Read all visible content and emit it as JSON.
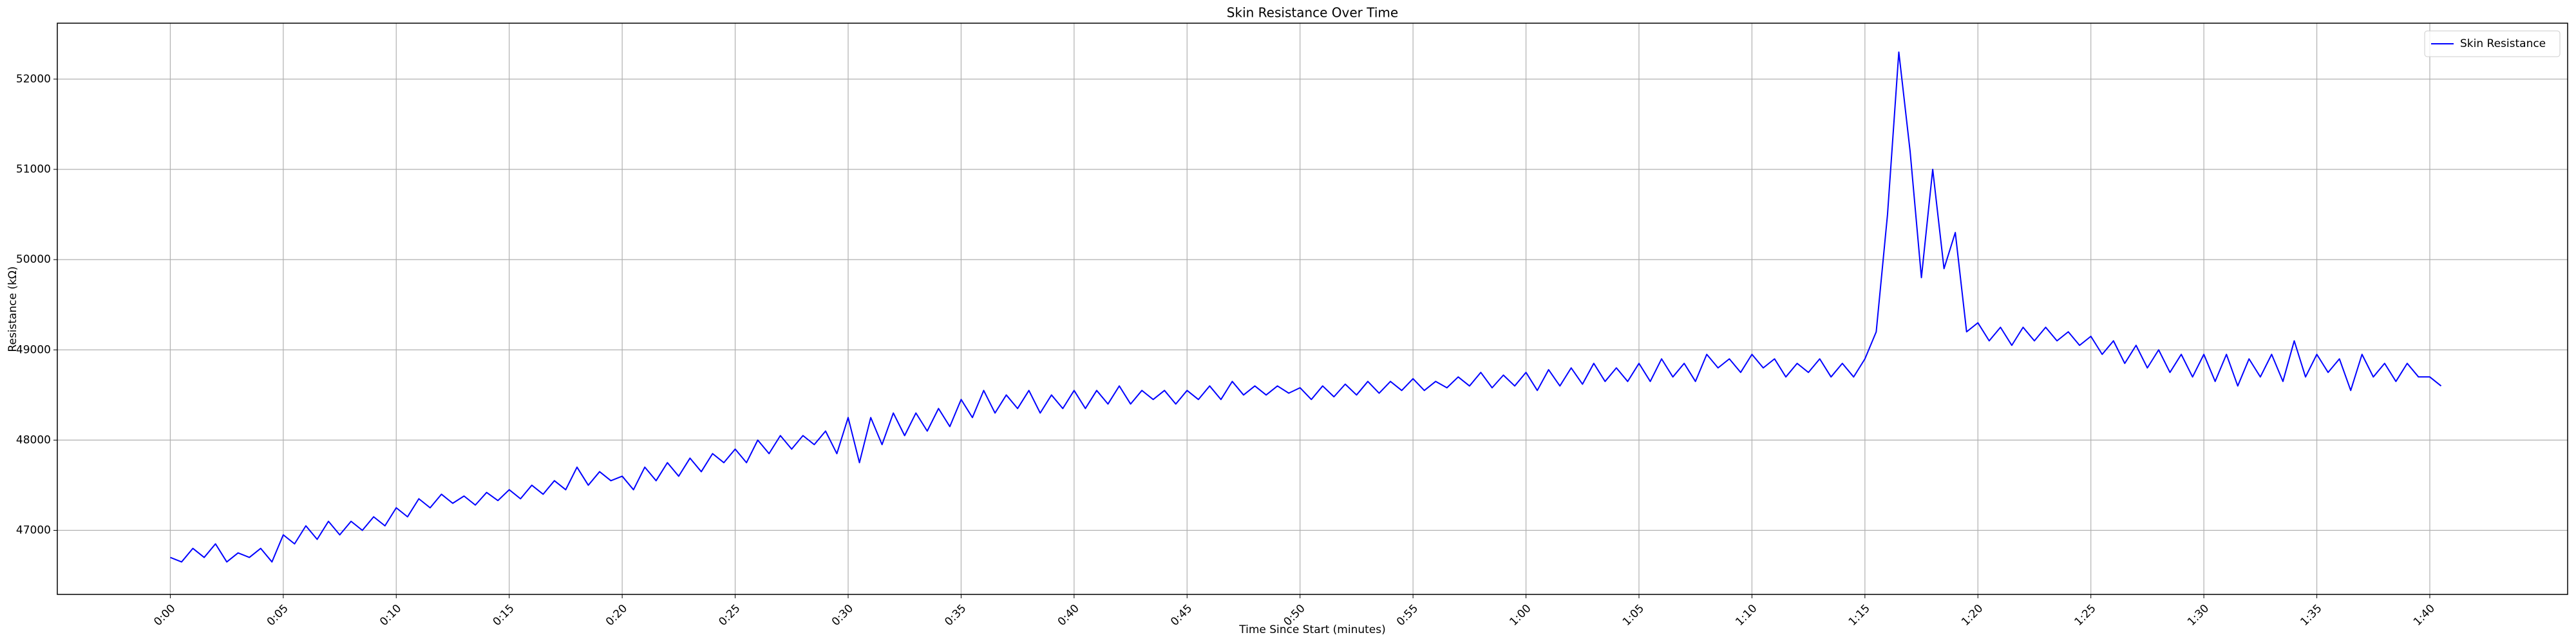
{
  "chart_data": {
    "type": "line",
    "title": "Skin Resistance Over Time",
    "x_label": "Time Since Start (minutes)",
    "y_label": "Resistance (kΩ)",
    "x": [
      0,
      0.5,
      1,
      1.5,
      2,
      2.5,
      3,
      3.5,
      4,
      4.5,
      5,
      5.5,
      6,
      6.5,
      7,
      7.5,
      8,
      8.5,
      9,
      9.5,
      10,
      10.5,
      11,
      11.5,
      12,
      12.5,
      13,
      13.5,
      14,
      14.5,
      15,
      15.5,
      16,
      16.5,
      17,
      17.5,
      18,
      18.5,
      19,
      19.5,
      20,
      20.5,
      21,
      21.5,
      22,
      22.5,
      23,
      23.5,
      24,
      24.5,
      25,
      25.5,
      26,
      26.5,
      27,
      27.5,
      28,
      28.5,
      29,
      29.5,
      30,
      30.5,
      31,
      31.5,
      32,
      32.5,
      33,
      33.5,
      34,
      34.5,
      35,
      35.5,
      36,
      36.5,
      37,
      37.5,
      38,
      38.5,
      39,
      39.5,
      40,
      40.5,
      41,
      41.5,
      42,
      42.5,
      43,
      43.5,
      44,
      44.5,
      45,
      45.5,
      46,
      46.5,
      47,
      47.5,
      48,
      48.5,
      49,
      49.5,
      50,
      50.5,
      51,
      51.5,
      52,
      52.5,
      53,
      53.5,
      54,
      54.5,
      55,
      55.5,
      56,
      56.5,
      57,
      57.5,
      58,
      58.5,
      59,
      59.5,
      60,
      60.5,
      61,
      61.5,
      62,
      62.5,
      63,
      63.5,
      64,
      64.5,
      65,
      65.5,
      66,
      66.5,
      67,
      67.5,
      68,
      68.5,
      69,
      69.5,
      70,
      70.5,
      71,
      71.5,
      72,
      72.5,
      73,
      73.5,
      74,
      74.5,
      75,
      75.5,
      76,
      76.5,
      77,
      77.5,
      78,
      78.5,
      79,
      79.5,
      80,
      80.5,
      81,
      81.5,
      82,
      82.5,
      83,
      83.5,
      84,
      84.5,
      85,
      85.5,
      86,
      86.5,
      87,
      87.5,
      88,
      88.5,
      89,
      89.5,
      90,
      90.5,
      91,
      91.5,
      92,
      92.5,
      93,
      93.5,
      94,
      94.5,
      95,
      95.5,
      96,
      96.5,
      97,
      97.5,
      98,
      98.5,
      99,
      99.5,
      100,
      100.5
    ],
    "series": [
      {
        "name": "Skin Resistance",
        "color": "#0000ff",
        "values": [
          46700,
          46650,
          46800,
          46700,
          46850,
          46650,
          46750,
          46700,
          46800,
          46650,
          46950,
          46850,
          47050,
          46900,
          47100,
          46950,
          47100,
          47000,
          47150,
          47050,
          47250,
          47150,
          47350,
          47250,
          47400,
          47300,
          47380,
          47280,
          47420,
          47330,
          47450,
          47350,
          47500,
          47400,
          47550,
          47450,
          47700,
          47500,
          47650,
          47550,
          47600,
          47450,
          47700,
          47550,
          47750,
          47600,
          47800,
          47650,
          47850,
          47750,
          47900,
          47750,
          48000,
          47850,
          48050,
          47900,
          48050,
          47950,
          48100,
          47850,
          48250,
          47750,
          48250,
          47950,
          48300,
          48050,
          48300,
          48100,
          48350,
          48150,
          48450,
          48250,
          48550,
          48300,
          48500,
          48350,
          48550,
          48300,
          48500,
          48350,
          48550,
          48350,
          48550,
          48400,
          48600,
          48400,
          48550,
          48450,
          48550,
          48400,
          48550,
          48450,
          48600,
          48450,
          48650,
          48500,
          48600,
          48500,
          48600,
          48520,
          48580,
          48450,
          48600,
          48480,
          48620,
          48500,
          48650,
          48520,
          48650,
          48550,
          48680,
          48550,
          48650,
          48580,
          48700,
          48600,
          48750,
          48580,
          48720,
          48600,
          48750,
          48550,
          48780,
          48600,
          48800,
          48620,
          48850,
          48650,
          48800,
          48650,
          48850,
          48650,
          48900,
          48700,
          48850,
          48650,
          48950,
          48800,
          48900,
          48750,
          48950,
          48800,
          48900,
          48700,
          48850,
          48750,
          48900,
          48700,
          48850,
          48700,
          48900,
          49200,
          50500,
          52300,
          51200,
          49800,
          51000,
          49900,
          50300,
          49200,
          49300,
          49100,
          49250,
          49050,
          49250,
          49100,
          49250,
          49100,
          49200,
          49050,
          49150,
          48950,
          49100,
          48850,
          49050,
          48800,
          49000,
          48750,
          48950,
          48700,
          48950,
          48650,
          48950,
          48600,
          48900,
          48700,
          48950,
          48650,
          49100,
          48700,
          48950,
          48750,
          48900,
          48550,
          48950,
          48700,
          48850,
          48650,
          48850,
          48700,
          48700,
          48600
        ]
      }
    ],
    "xlim": [
      -5.0,
      106.1
    ],
    "ylim": [
      46290,
      52620
    ],
    "xticks": [
      {
        "value": 0,
        "label": "0:00"
      },
      {
        "value": 5,
        "label": "0:05"
      },
      {
        "value": 10,
        "label": "0:10"
      },
      {
        "value": 15,
        "label": "0:15"
      },
      {
        "value": 20,
        "label": "0:20"
      },
      {
        "value": 25,
        "label": "0:25"
      },
      {
        "value": 30,
        "label": "0:30"
      },
      {
        "value": 35,
        "label": "0:35"
      },
      {
        "value": 40,
        "label": "0:40"
      },
      {
        "value": 45,
        "label": "0:45"
      },
      {
        "value": 50,
        "label": "0:50"
      },
      {
        "value": 55,
        "label": "0:55"
      },
      {
        "value": 60,
        "label": "1:00"
      },
      {
        "value": 65,
        "label": "1:05"
      },
      {
        "value": 70,
        "label": "1:10"
      },
      {
        "value": 75,
        "label": "1:15"
      },
      {
        "value": 80,
        "label": "1:20"
      },
      {
        "value": 85,
        "label": "1:25"
      },
      {
        "value": 90,
        "label": "1:30"
      },
      {
        "value": 95,
        "label": "1:35"
      },
      {
        "value": 100,
        "label": "1:40"
      }
    ],
    "yticks": [
      47000,
      48000,
      49000,
      50000,
      51000,
      52000
    ],
    "grid": true,
    "legend": "upper right"
  }
}
